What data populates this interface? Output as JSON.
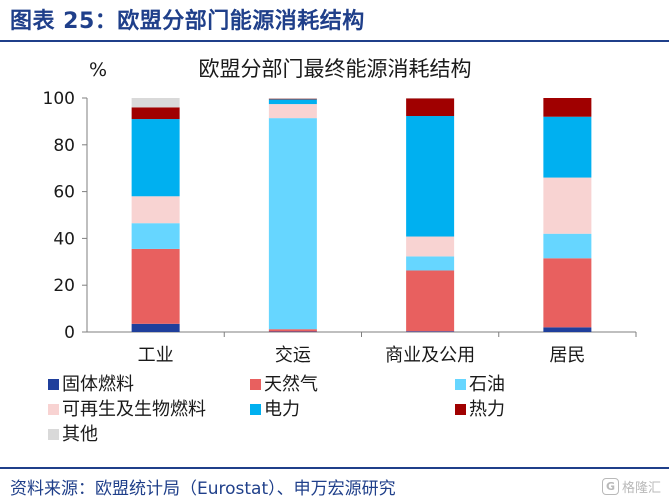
{
  "figure_title": "图表 25：欧盟分部门能源消耗结构",
  "source": "资料来源：欧盟统计局（Eurostat）、申万宏源研究",
  "watermark": {
    "icon": "G",
    "text": "格隆汇",
    "icon_name": "gelonghui-logo-icon"
  },
  "chart_data": {
    "type": "bar",
    "stacked": true,
    "title": "欧盟分部门最终能源消耗结构",
    "ylabel": "%",
    "xlabel": "",
    "ylim": [
      0,
      100
    ],
    "yticks": [
      0,
      20,
      40,
      60,
      80,
      100
    ],
    "categories": [
      "工业",
      "交运",
      "商业及公用",
      "居民"
    ],
    "series": [
      {
        "name": "固体燃料",
        "color": "#1f3f9c",
        "values": [
          3.5,
          0.2,
          0.3,
          2.0
        ]
      },
      {
        "name": "天然气",
        "color": "#e8605f",
        "values": [
          32.0,
          1.0,
          26.0,
          29.5
        ]
      },
      {
        "name": "石油",
        "color": "#66d6ff",
        "values": [
          11.0,
          90.2,
          6.0,
          10.5
        ]
      },
      {
        "name": "可再生及生物燃料",
        "color": "#f8d3d2",
        "values": [
          11.5,
          6.0,
          8.5,
          24.0
        ]
      },
      {
        "name": "电力",
        "color": "#00b0f0",
        "values": [
          33.0,
          2.0,
          51.5,
          26.0
        ]
      },
      {
        "name": "热力",
        "color": "#a00000",
        "values": [
          5.0,
          0.3,
          7.5,
          8.0
        ]
      },
      {
        "name": "其他",
        "color": "#d9d9d9",
        "values": [
          4.0,
          0.3,
          0.2,
          0.0
        ]
      }
    ],
    "grid": false,
    "legend": "bottom"
  }
}
